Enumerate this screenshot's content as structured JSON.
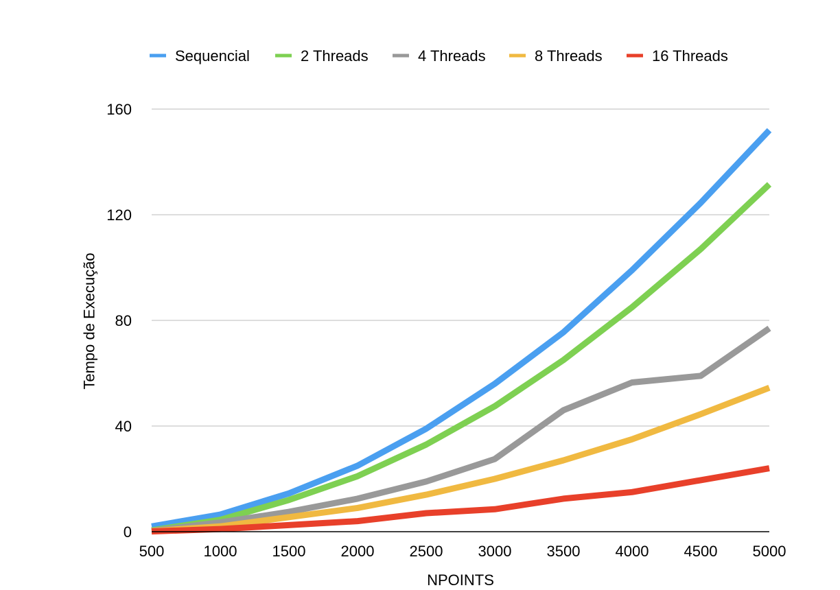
{
  "chart_data": {
    "type": "line",
    "title": "",
    "xlabel": "NPOINTS",
    "ylabel": "Tempo de Execução",
    "x": [
      500,
      1000,
      1500,
      2000,
      2500,
      3000,
      3500,
      4000,
      4500,
      5000
    ],
    "xlim": [
      500,
      5000
    ],
    "ylim": [
      0,
      160
    ],
    "yticks": [
      0,
      40,
      80,
      120,
      160
    ],
    "grid": true,
    "legend_position": "top",
    "series": [
      {
        "name": "Sequencial",
        "color": "#4a9ff0",
        "values": [
          2,
          6.5,
          14.5,
          25,
          39,
          56,
          75.5,
          99,
          124.5,
          152
        ]
      },
      {
        "name": "2 Threads",
        "color": "#7ed052",
        "values": [
          0.5,
          4.5,
          12,
          21,
          33,
          47.5,
          65,
          85,
          107,
          131.5
        ]
      },
      {
        "name": "4 Threads",
        "color": "#999999",
        "values": [
          0.3,
          3.5,
          7.5,
          12.5,
          19,
          27.5,
          46,
          56.5,
          59,
          77
        ]
      },
      {
        "name": "8 Threads",
        "color": "#f0b941",
        "values": [
          0.2,
          2,
          5.5,
          9,
          14,
          20,
          27,
          35,
          44.5,
          54.5
        ]
      },
      {
        "name": "16 Threads",
        "color": "#e8402a",
        "values": [
          0.1,
          1,
          2.5,
          4,
          7,
          8.5,
          12.5,
          15,
          19.5,
          24
        ]
      }
    ]
  }
}
